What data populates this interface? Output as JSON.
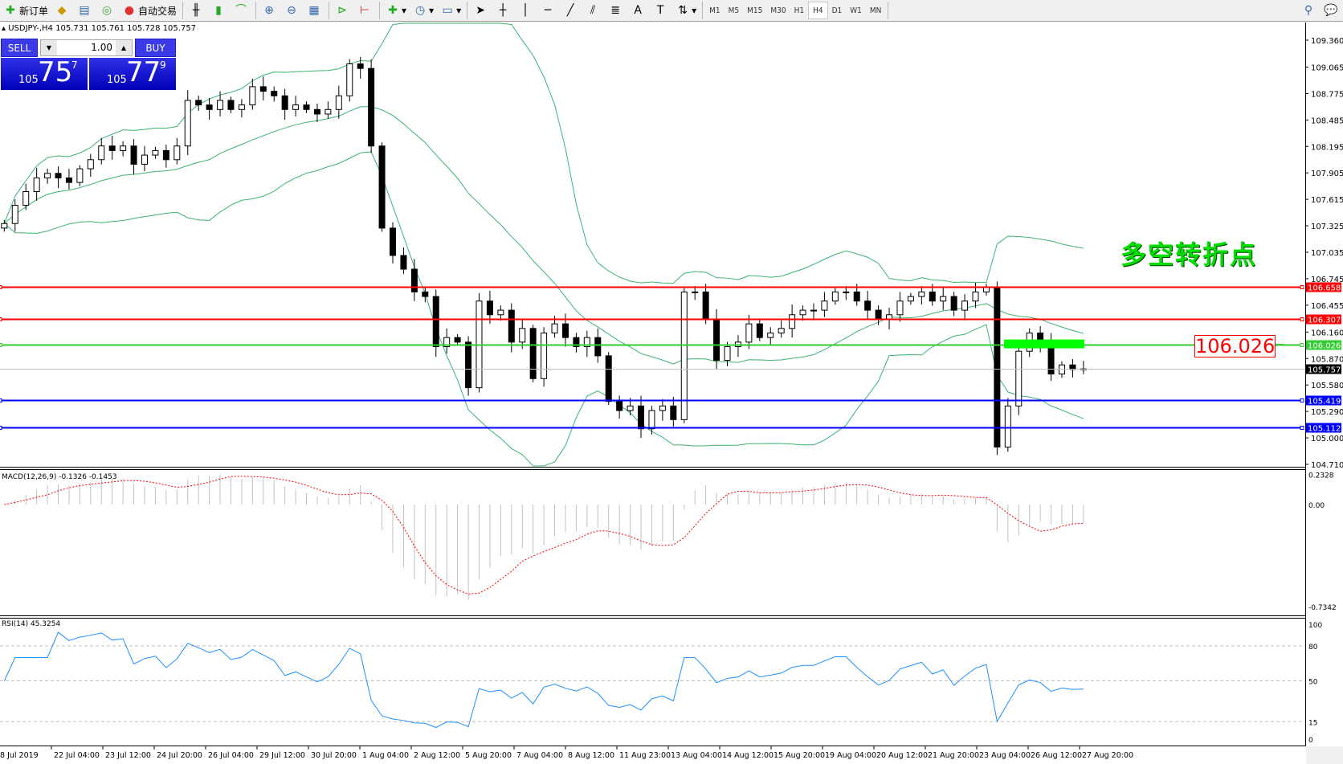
{
  "toolbar": {
    "new_order": "新订单",
    "auto_trading": "自动交易",
    "timeframes": [
      "M1",
      "M5",
      "M15",
      "M30",
      "H1",
      "H4",
      "D1",
      "W1",
      "MN"
    ],
    "active_timeframe": "H4"
  },
  "chart": {
    "symbol_line": "USDJPY-,H4  105.731 105.761 105.728 105.757",
    "trade_panel": {
      "sell": "SELL",
      "buy": "BUY",
      "lot": "1.00",
      "sell_prefix": "105",
      "sell_big": "75",
      "sell_sup": "7",
      "buy_prefix": "105",
      "buy_big": "77",
      "buy_sup": "9"
    },
    "annotation": "多空转折点",
    "level_label": "106.026",
    "price_axis": [
      "109.360",
      "109.065",
      "108.775",
      "108.485",
      "108.195",
      "107.905",
      "107.615",
      "107.325",
      "107.035",
      "106.745",
      "106.455",
      "106.160",
      "105.870",
      "105.580",
      "105.290",
      "105.000",
      "104.710"
    ],
    "levels": [
      {
        "price": "106.658",
        "color": "#ff0000"
      },
      {
        "price": "106.307",
        "color": "#ff0000"
      },
      {
        "price": "106.026",
        "color": "#33cc33"
      },
      {
        "price": "105.757",
        "color": "#000000",
        "bid": true
      },
      {
        "price": "105.419",
        "color": "#0000ff"
      },
      {
        "price": "105.112",
        "color": "#0000ff"
      }
    ],
    "green_zone_price": 106.026,
    "closes": [
      107.35,
      107.55,
      107.7,
      107.85,
      107.9,
      107.85,
      107.8,
      107.95,
      108.05,
      108.2,
      108.15,
      108.2,
      108.0,
      108.1,
      108.15,
      108.05,
      108.2,
      108.7,
      108.65,
      108.6,
      108.7,
      108.6,
      108.65,
      108.85,
      108.8,
      108.75,
      108.6,
      108.65,
      108.6,
      108.55,
      108.6,
      108.75,
      109.1,
      109.05,
      108.2,
      107.3,
      107.0,
      106.85,
      106.6,
      106.55,
      106.0,
      106.1,
      106.05,
      105.55,
      106.5,
      106.35,
      106.4,
      106.05,
      106.2,
      105.65,
      106.15,
      106.25,
      106.1,
      106.0,
      106.1,
      105.9,
      105.4,
      105.3,
      105.35,
      105.1,
      105.3,
      105.35,
      105.2,
      106.6,
      106.6,
      106.3,
      105.85,
      106.0,
      106.05,
      106.25,
      106.1,
      106.15,
      106.2,
      106.35,
      106.4,
      106.4,
      106.5,
      106.6,
      106.6,
      106.5,
      106.4,
      106.3,
      106.35,
      106.5,
      106.55,
      106.6,
      106.5,
      106.55,
      106.4,
      106.5,
      106.6,
      106.65,
      104.9,
      105.35,
      105.95,
      106.15,
      106.05,
      105.7,
      105.8,
      105.75,
      105.757
    ],
    "colors": {
      "bands": "#3cb371",
      "macd_hist": "#c0c0c0",
      "macd_signal": "#ff0000",
      "rsi": "#1e90ff"
    }
  },
  "macd": {
    "label": "MACD(12,26,9) -0.1326 -0.1453",
    "axis": [
      "0.2328",
      "0.00",
      "-0.7342"
    ]
  },
  "rsi": {
    "label": "RSI(14) 45.3254",
    "axis": [
      "100",
      "80",
      "50",
      "15",
      "0"
    ]
  },
  "time_axis": [
    "8 Jul 2019",
    "22 Jul 04:00",
    "23 Jul 12:00",
    "24 Jul 20:00",
    "26 Jul 04:00",
    "29 Jul 12:00",
    "30 Jul 20:00",
    "1 Aug 04:00",
    "2 Aug 12:00",
    "5 Aug 20:00",
    "7 Aug 04:00",
    "8 Aug 12:00",
    "11 Aug 23:00",
    "13 Aug 04:00",
    "14 Aug 12:00",
    "15 Aug 20:00",
    "19 Aug 04:00",
    "20 Aug 12:00",
    "21 Aug 20:00",
    "23 Aug 04:00",
    "26 Aug 12:00",
    "27 Aug 20:00"
  ]
}
